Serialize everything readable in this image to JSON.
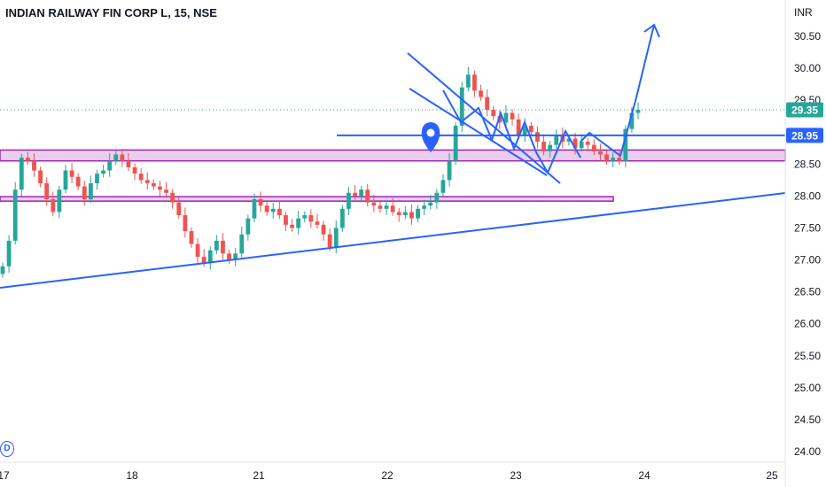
{
  "header": {
    "title": "INDIAN RAILWAY FIN CORP L, 15, NSE"
  },
  "badge": {
    "label": "D"
  },
  "colors": {
    "up": "#26a69a",
    "down": "#ef5350",
    "drawing": "#2962ff",
    "zone_fill": "#e1bee7",
    "zone_border": "#9c27b0",
    "last_price": "#26a69a",
    "level_tag": "#2962ff"
  },
  "chart_data": {
    "type": "candlestick",
    "title": "INDIAN RAILWAY FIN CORP L, 15, NSE",
    "currency": "INR",
    "x_ticks": [
      "17",
      "18",
      "21",
      "22",
      "23",
      "24",
      "25"
    ],
    "y_ticks": [
      "30.50",
      "30.00",
      "29.50",
      "29.00",
      "28.50",
      "28.00",
      "27.50",
      "27.00",
      "26.50",
      "26.00",
      "25.50",
      "25.00",
      "24.50",
      "24.00"
    ],
    "ylim": [
      23.9,
      31.0
    ],
    "grid": false,
    "last_price": {
      "value": 29.35,
      "label": "29.35"
    },
    "level_tag": {
      "value": 28.95,
      "label": "28.95"
    },
    "candles_close": [
      26.9,
      27.3,
      28.1,
      28.6,
      28.55,
      28.4,
      28.2,
      27.95,
      27.75,
      28.1,
      28.4,
      28.3,
      28.15,
      27.95,
      28.2,
      28.35,
      28.4,
      28.55,
      28.65,
      28.55,
      28.45,
      28.35,
      28.25,
      28.2,
      28.15,
      28.1,
      28.05,
      27.9,
      27.7,
      27.45,
      27.25,
      27.05,
      26.95,
      27.15,
      27.3,
      27.1,
      27.0,
      27.1,
      27.4,
      27.65,
      27.95,
      27.85,
      27.75,
      27.8,
      27.7,
      27.55,
      27.5,
      27.65,
      27.7,
      27.6,
      27.55,
      27.4,
      27.2,
      27.5,
      27.8,
      28.05,
      28.0,
      28.1,
      27.9,
      27.85,
      27.8,
      27.85,
      27.75,
      27.7,
      27.75,
      27.65,
      27.8,
      27.85,
      27.9,
      28.05,
      28.25,
      28.55,
      29.1,
      29.7,
      29.9,
      29.65,
      29.55,
      29.35,
      29.25,
      29.15,
      29.3,
      29.2,
      28.95,
      29.1,
      29.0,
      28.85,
      28.7,
      28.8,
      28.95,
      28.85,
      28.9,
      28.75,
      28.85,
      28.8,
      28.7,
      28.65,
      28.55,
      28.6,
      28.55,
      29.05,
      29.3,
      29.35
    ],
    "annotations": {
      "support_zones": [
        [
          28.55,
          28.72
        ],
        [
          27.92,
          27.99
        ]
      ],
      "horizontal_level": 28.95,
      "ascending_trendline": [
        [
          0,
          26.68
        ],
        [
          1,
          28.02
        ]
      ],
      "descending_channel": [
        [
          30.05,
          28.5
        ],
        [
          29.65,
          28.25
        ]
      ],
      "arrow_target": 30.65
    }
  }
}
